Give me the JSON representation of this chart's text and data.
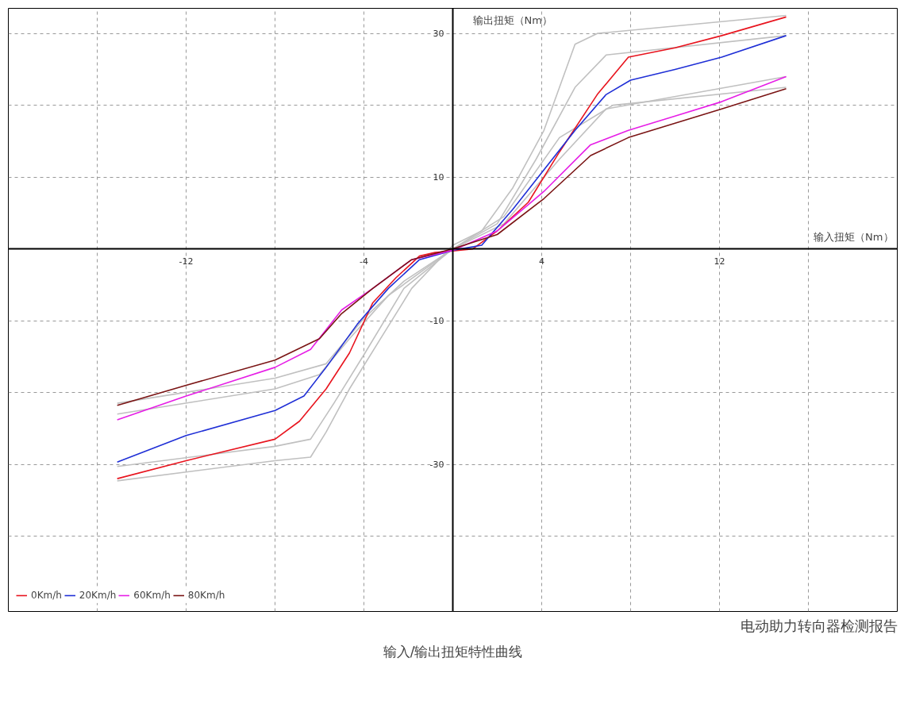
{
  "chart_data": {
    "type": "line",
    "title": "输入/输出扭矩特性曲线",
    "xlabel": "输入扭矩（Nm）",
    "ylabel": "输出扭矩（Nm）",
    "annotations": [
      "电动助力转向器检测报告"
    ],
    "xlim": [
      -20,
      20
    ],
    "ylim": [
      -50.5,
      33.5
    ],
    "xticks": [
      {
        "value": -16,
        "label": null
      },
      -12,
      {
        "value": -8,
        "label": null
      },
      -4,
      {
        "value": 0,
        "label": null
      },
      4,
      {
        "value": 8,
        "label": null
      },
      12,
      {
        "value": 16,
        "label": null
      }
    ],
    "yticks": [
      {
        "value": -40,
        "label": null
      },
      -30,
      {
        "value": -20,
        "label": null
      },
      -10,
      {
        "value": 0,
        "label": null
      },
      10,
      {
        "value": 20,
        "label": null
      },
      30
    ],
    "grid": true,
    "legend": "bottom left",
    "marker": "none",
    "line_style": "solid",
    "series": [
      {
        "color": "#c0c0c0",
        "x": [
          -15.1,
          -8,
          -6.4,
          -5.7,
          -4.65,
          -3.25,
          -1.85,
          0,
          1.3,
          2.7,
          4.1,
          5.5,
          6.5,
          15
        ],
        "values": [
          -32.3,
          -29.5,
          -29,
          -25.5,
          -19.5,
          -12.5,
          -5.5,
          0.5,
          2.5,
          8.5,
          16.5,
          28.5,
          30,
          32.5
        ]
      },
      {
        "color": "#c0c0c0",
        "x": [
          -15.1,
          -8,
          -6.4,
          -5.35,
          -3.95,
          -2.2,
          0,
          2,
          3.75,
          5.5,
          6.9,
          15
        ],
        "values": [
          -30.3,
          -27.5,
          -26.5,
          -21.5,
          -14.5,
          -5.5,
          0,
          3.5,
          12.5,
          22.5,
          27,
          29.7
        ]
      },
      {
        "color": "#c0c0c0",
        "x": [
          -15.1,
          -8,
          -6,
          -4.65,
          -2.9,
          0,
          2.3,
          4.8,
          6.9,
          15
        ],
        "values": [
          -23,
          -19.5,
          -17.5,
          -12.5,
          -6.5,
          0,
          3.5,
          12.5,
          19.5,
          24
        ]
      },
      {
        "color": "#c0c0c0",
        "x": [
          -15.1,
          -8,
          -5.7,
          -3.95,
          -2.2,
          0,
          2.3,
          4.8,
          7.2,
          15
        ],
        "values": [
          -21.5,
          -18,
          -16,
          -9.5,
          -4.5,
          0,
          4.5,
          15.5,
          20,
          22.5
        ]
      },
      {
        "name": "0Km/h",
        "color": "#e8141e",
        "x": [
          -15.1,
          -12,
          -8,
          -6.9,
          -5.7,
          -4.65,
          -3.6,
          -2.55,
          -1.5,
          -0.8,
          0,
          0.9,
          2,
          3.4,
          4.8,
          6.5,
          7.9,
          10,
          12.1,
          15
        ],
        "values": [
          -32,
          -29.5,
          -26.5,
          -24,
          -19.5,
          -14.5,
          -7.5,
          -4,
          -1,
          -0.5,
          -0.3,
          0,
          2.5,
          6.5,
          13.5,
          21.5,
          26.7,
          28,
          29.7,
          32.3
        ]
      },
      {
        "name": "20Km/h",
        "color": "#1f2fd6",
        "x": [
          -15.1,
          -12,
          -8,
          -6.7,
          -5.7,
          -4.3,
          -2.9,
          -1.5,
          0,
          1.3,
          2.7,
          4.1,
          5.5,
          6.9,
          8,
          10,
          12.1,
          15
        ],
        "values": [
          -29.7,
          -26,
          -22.5,
          -20.5,
          -16.5,
          -10.5,
          -5.5,
          -1.5,
          -0.2,
          0.5,
          5.5,
          11,
          16.5,
          21.5,
          23.5,
          25,
          26.7,
          29.7
        ]
      },
      {
        "name": "60Km/h",
        "color": "#e61ee6",
        "x": [
          -15.1,
          -12,
          -8,
          -6.4,
          -5,
          -3.6,
          -1.85,
          0,
          2,
          4.1,
          6.2,
          7.9,
          10,
          12.1,
          15
        ],
        "values": [
          -23.8,
          -20.5,
          -16.5,
          -14,
          -8.5,
          -5.5,
          -1.5,
          -0.2,
          2.5,
          8,
          14.5,
          16.5,
          18.5,
          20.5,
          24
        ]
      },
      {
        "name": "80Km/h",
        "color": "#7a1414",
        "x": [
          -15.1,
          -12,
          -8,
          -6,
          -5,
          -3.6,
          -1.85,
          0,
          2,
          4.1,
          6.2,
          7.9,
          10,
          12.1,
          15
        ],
        "values": [
          -21.8,
          -19,
          -15.5,
          -12.5,
          -9,
          -5.5,
          -1.5,
          0,
          2,
          7,
          13,
          15.5,
          17.5,
          19.5,
          22.3
        ]
      }
    ]
  }
}
